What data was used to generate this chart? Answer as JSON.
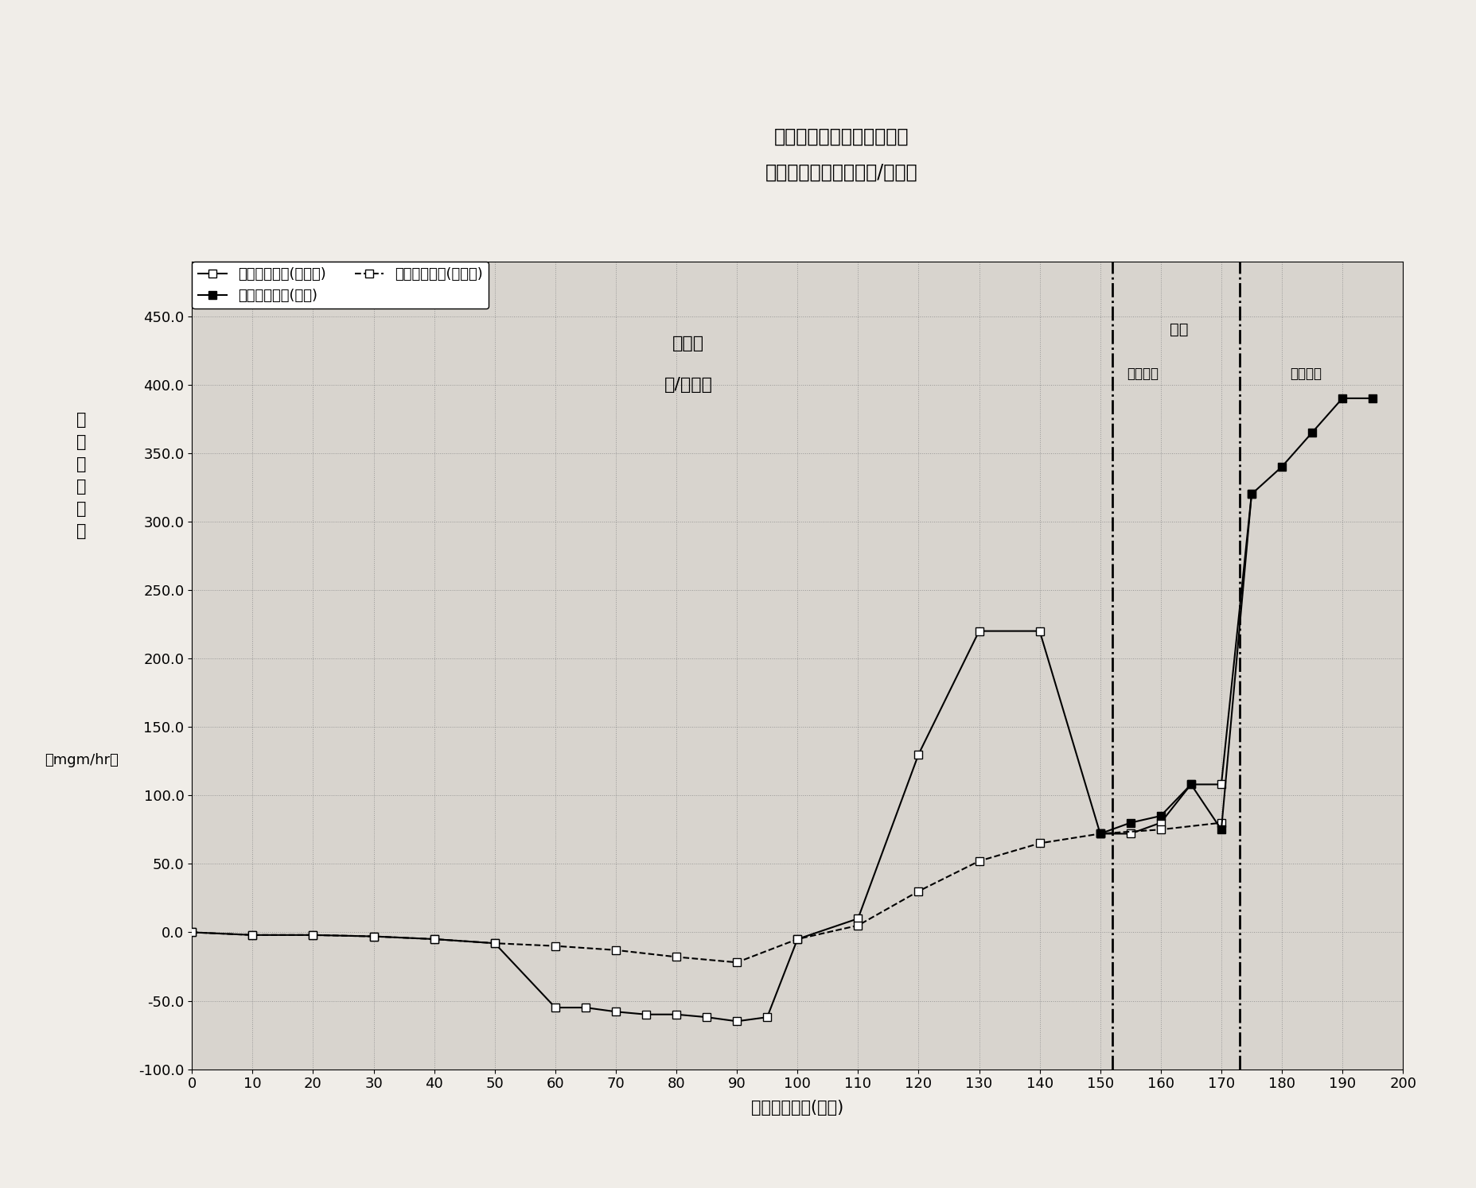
{
  "title_line1": "热流动对比电浆条件：丝极",
  "title_line2": "源丝极：钨传送：电浆/无电浆",
  "xlabel": "平均丝极电流(安培)",
  "ylabel_chars": "丝\n极\n重\n量\n变\n化",
  "ylabel_unit": "（mgm/hr）",
  "xlim": [
    0,
    200
  ],
  "ylim": [
    -100.0,
    490.0
  ],
  "ytick_labels": [
    "-100.0",
    "-50.0",
    "0.0",
    "50.0",
    "100.0",
    "150.0",
    "200.0",
    "250.0",
    "300.0",
    "350.0",
    "400.0",
    "450.0"
  ],
  "yticks": [
    -100.0,
    -50.0,
    0.0,
    50.0,
    100.0,
    150.0,
    200.0,
    250.0,
    300.0,
    350.0,
    400.0,
    450.0
  ],
  "xticks": [
    0,
    10,
    20,
    30,
    40,
    50,
    60,
    70,
    80,
    90,
    100,
    110,
    120,
    130,
    140,
    150,
    160,
    170,
    180,
    190,
    200
  ],
  "vline1_x": 152,
  "vline2_x": 173,
  "label_hot": "热丝极",
  "label_hot_sub": "高/低流量",
  "label_plasma": "电浆",
  "label_low_plasma": "低流量浆",
  "label_high_plasma": "高流量浆",
  "series_high_flow": {
    "label": "丝极重量变化(高流量)",
    "x": [
      0,
      10,
      20,
      30,
      40,
      50,
      60,
      65,
      70,
      75,
      80,
      85,
      90,
      95,
      100,
      110,
      120,
      130,
      140,
      150,
      155,
      160,
      165,
      170,
      175
    ],
    "y": [
      0,
      -2,
      -2,
      -3,
      -5,
      -8,
      -55,
      -55,
      -58,
      -60,
      -60,
      -62,
      -65,
      -62,
      -5,
      10,
      130,
      220,
      220,
      72,
      72,
      80,
      108,
      108,
      320
    ],
    "color": "#000000",
    "linestyle": "-",
    "marker": "s",
    "markerfacecolor": "white",
    "linewidth": 1.5
  },
  "series_low_flow": {
    "label": "丝极重量变化(低流量)",
    "x": [
      0,
      10,
      20,
      30,
      40,
      50,
      60,
      70,
      80,
      90,
      100,
      110,
      120,
      130,
      140,
      150,
      160,
      170
    ],
    "y": [
      0,
      -2,
      -2,
      -3,
      -5,
      -8,
      -10,
      -13,
      -18,
      -22,
      -5,
      5,
      30,
      52,
      65,
      72,
      75,
      80
    ],
    "color": "#000000",
    "linestyle": "--",
    "marker": "s",
    "markerfacecolor": "white",
    "linewidth": 1.5
  },
  "series_plasma": {
    "label": "丝极重量变化(电浆)",
    "x": [
      150,
      155,
      160,
      165,
      170,
      175,
      180,
      185,
      190,
      195
    ],
    "y": [
      72,
      80,
      85,
      108,
      75,
      320,
      340,
      365,
      390,
      390
    ],
    "color": "#000000",
    "linestyle": "-",
    "marker": "s",
    "markerfacecolor": "black",
    "linewidth": 1.5
  },
  "background_color": "#f0ede8",
  "grid_color": "#888888",
  "plot_bg_color": "#d8d4ce"
}
